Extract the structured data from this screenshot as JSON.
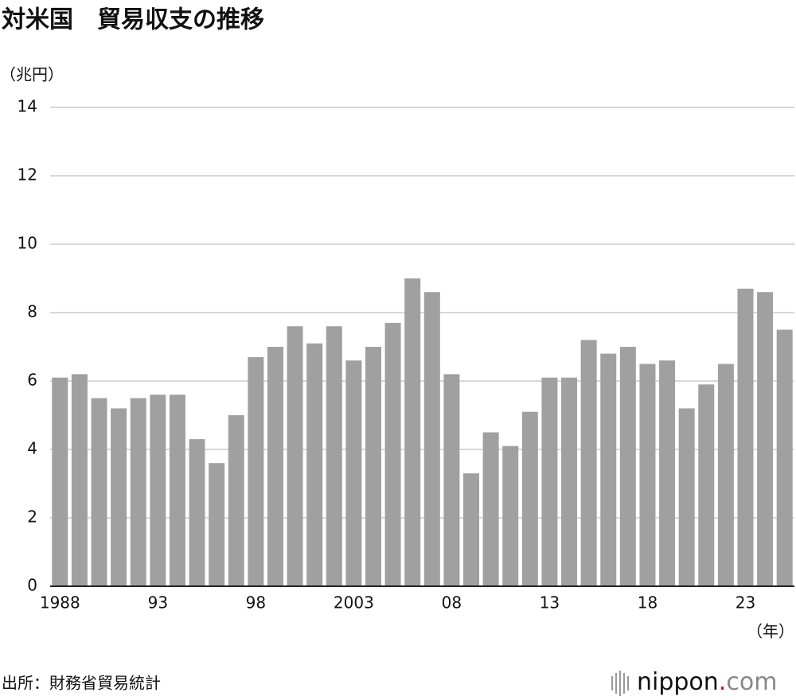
{
  "chart_data": {
    "type": "bar",
    "title": "対米国　貿易収支の推移",
    "y_label": "（兆円）",
    "x_label": "（年）",
    "source": "出所：財務省貿易統計",
    "logo": {
      "name": "nippon",
      "dot": ".",
      "tld": "com"
    },
    "categories": [
      "1988",
      null,
      null,
      null,
      null,
      "93",
      null,
      null,
      null,
      null,
      "98",
      null,
      null,
      null,
      null,
      "2003",
      null,
      null,
      null,
      null,
      "08",
      null,
      null,
      null,
      null,
      "13",
      null,
      null,
      null,
      null,
      "18",
      null,
      null,
      null,
      null,
      "23",
      null,
      null
    ],
    "values": [
      6.1,
      6.2,
      5.5,
      5.2,
      5.5,
      5.6,
      5.6,
      4.3,
      3.6,
      5.0,
      6.7,
      7.0,
      7.6,
      7.1,
      7.6,
      6.6,
      7.0,
      7.7,
      9.0,
      8.6,
      6.2,
      3.3,
      4.5,
      4.1,
      5.1,
      6.1,
      6.1,
      7.2,
      6.8,
      7.0,
      6.5,
      6.6,
      5.2,
      5.9,
      6.5,
      8.7,
      8.6,
      7.5
    ],
    "color": "#a0a0a0",
    "ylim": [
      0,
      14
    ],
    "yticks": [
      0,
      2,
      4,
      6,
      8,
      10,
      12,
      14
    ],
    "grid": true
  }
}
